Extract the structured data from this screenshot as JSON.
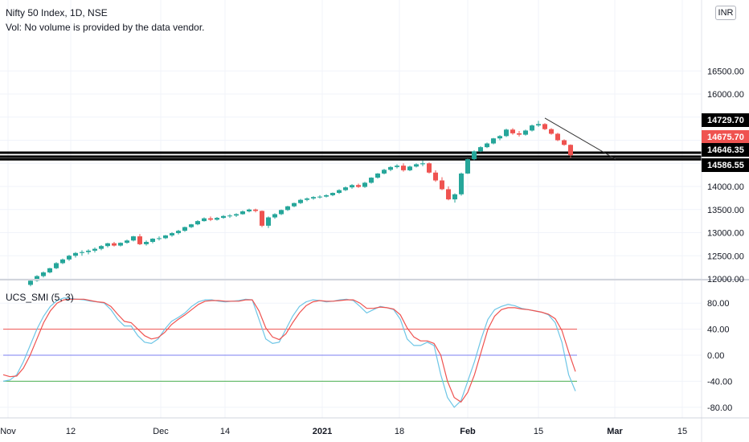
{
  "header": {
    "title": "Nifty 50 Index, 1D, NSE",
    "volume_note": "Vol: No volume is provided by the data vendor.",
    "currency": "INR"
  },
  "indicator": {
    "label": "UCS_SMI (5, 3)"
  },
  "colors": {
    "up": "#26a69a",
    "down": "#ef5350",
    "grid": "#f0f3fa",
    "smi_fast": "#6ec6e6",
    "smi_slow": "#ef5350",
    "level_high": "#ef5350",
    "level_zero": "#7b7ff0",
    "level_low": "#4caf50"
  },
  "chart_data": [
    {
      "type": "candlestick",
      "title": "Nifty 50 Index, 1D, NSE",
      "y_ticks": [
        "12000.00",
        "12500.00",
        "13000.00",
        "13500.00",
        "14000.00",
        "14500.00",
        "15000.00",
        "15500.00",
        "16000.00",
        "16500.00"
      ],
      "x_ticks": [
        "Nov",
        "12",
        "Dec",
        "14",
        "2021",
        "18",
        "Feb",
        "15",
        "Mar",
        "15"
      ],
      "ylim": [
        12000,
        16500
      ],
      "candles": [
        [
          11870,
          11990,
          11840,
          11960
        ],
        [
          11960,
          12080,
          11940,
          12060
        ],
        [
          12060,
          12160,
          12030,
          12140
        ],
        [
          12140,
          12240,
          12120,
          12230
        ],
        [
          12230,
          12360,
          12210,
          12340
        ],
        [
          12340,
          12440,
          12320,
          12420
        ],
        [
          12420,
          12520,
          12390,
          12500
        ],
        [
          12500,
          12580,
          12460,
          12560
        ],
        [
          12560,
          12620,
          12500,
          12580
        ],
        [
          12580,
          12640,
          12530,
          12610
        ],
        [
          12610,
          12680,
          12570,
          12650
        ],
        [
          12650,
          12730,
          12620,
          12710
        ],
        [
          12710,
          12780,
          12680,
          12770
        ],
        [
          12770,
          12800,
          12700,
          12720
        ],
        [
          12720,
          12790,
          12700,
          12780
        ],
        [
          12780,
          12850,
          12760,
          12830
        ],
        [
          12830,
          12930,
          12810,
          12920
        ],
        [
          12920,
          12970,
          12730,
          12750
        ],
        [
          12750,
          12830,
          12720,
          12800
        ],
        [
          12800,
          12880,
          12770,
          12870
        ],
        [
          12870,
          12920,
          12830,
          12880
        ],
        [
          12880,
          12950,
          12860,
          12940
        ],
        [
          12940,
          13010,
          12910,
          12990
        ],
        [
          12990,
          13060,
          12960,
          13040
        ],
        [
          13040,
          13130,
          13020,
          13120
        ],
        [
          13120,
          13190,
          13100,
          13180
        ],
        [
          13180,
          13270,
          13160,
          13250
        ],
        [
          13250,
          13330,
          13240,
          13310
        ],
        [
          13310,
          13350,
          13250,
          13280
        ],
        [
          13280,
          13340,
          13260,
          13320
        ],
        [
          13320,
          13380,
          13300,
          13360
        ],
        [
          13360,
          13400,
          13320,
          13370
        ],
        [
          13370,
          13420,
          13340,
          13400
        ],
        [
          13400,
          13480,
          13390,
          13460
        ],
        [
          13460,
          13520,
          13440,
          13500
        ],
        [
          13500,
          13520,
          13440,
          13470
        ],
        [
          13470,
          13480,
          13120,
          13150
        ],
        [
          13150,
          13350,
          13100,
          13330
        ],
        [
          13330,
          13420,
          13300,
          13400
        ],
        [
          13400,
          13500,
          13380,
          13490
        ],
        [
          13490,
          13580,
          13470,
          13570
        ],
        [
          13570,
          13650,
          13550,
          13640
        ],
        [
          13640,
          13730,
          13620,
          13710
        ],
        [
          13710,
          13760,
          13680,
          13740
        ],
        [
          13740,
          13790,
          13710,
          13770
        ],
        [
          13770,
          13810,
          13740,
          13780
        ],
        [
          13780,
          13830,
          13760,
          13810
        ],
        [
          13810,
          13870,
          13790,
          13860
        ],
        [
          13860,
          13940,
          13840,
          13920
        ],
        [
          13920,
          14000,
          13900,
          13980
        ],
        [
          13980,
          14050,
          13950,
          14030
        ],
        [
          14030,
          14060,
          13970,
          13990
        ],
        [
          13990,
          14100,
          13970,
          14080
        ],
        [
          14080,
          14200,
          14060,
          14190
        ],
        [
          14190,
          14290,
          14170,
          14280
        ],
        [
          14280,
          14380,
          14260,
          14360
        ],
        [
          14360,
          14440,
          14330,
          14420
        ],
        [
          14420,
          14480,
          14390,
          14450
        ],
        [
          14450,
          14500,
          14320,
          14350
        ],
        [
          14350,
          14450,
          14330,
          14430
        ],
        [
          14430,
          14500,
          14410,
          14480
        ],
        [
          14480,
          14560,
          14440,
          14500
        ],
        [
          14500,
          14520,
          14280,
          14300
        ],
        [
          14300,
          14350,
          14100,
          14130
        ],
        [
          14130,
          14200,
          13920,
          13940
        ],
        [
          13940,
          14000,
          13700,
          13720
        ],
        [
          13720,
          13850,
          13650,
          13830
        ],
        [
          13830,
          14300,
          13800,
          14280
        ],
        [
          14280,
          14600,
          14270,
          14590
        ],
        [
          14590,
          14780,
          14570,
          14760
        ],
        [
          14760,
          14870,
          14740,
          14850
        ],
        [
          14850,
          14950,
          14830,
          14930
        ],
        [
          14930,
          15050,
          14910,
          15040
        ],
        [
          15040,
          15110,
          15000,
          15090
        ],
        [
          15090,
          15250,
          15070,
          15230
        ],
        [
          15230,
          15260,
          15120,
          15150
        ],
        [
          15150,
          15200,
          15080,
          15120
        ],
        [
          15120,
          15230,
          15100,
          15210
        ],
        [
          15210,
          15340,
          15190,
          15320
        ],
        [
          15320,
          15420,
          15290,
          15350
        ],
        [
          15350,
          15370,
          15220,
          15240
        ],
        [
          15240,
          15260,
          15120,
          15140
        ],
        [
          15140,
          15160,
          14980,
          15000
        ],
        [
          15000,
          15020,
          14880,
          14900
        ],
        [
          14900,
          14910,
          14620,
          14675.7
        ]
      ],
      "support_levels": [
        14729.7,
        14646.35,
        14586.55
      ],
      "price_labels": [
        "14729.70",
        "14675.70",
        "14646.35",
        "14586.55"
      ],
      "trendline": [
        [
          15480,
          14590
        ]
      ],
      "grid": true
    },
    {
      "type": "line",
      "title": "UCS_SMI (5, 3)",
      "y_ticks": [
        "80.00",
        "40.00",
        "0.00",
        "-40.00",
        "-80.00"
      ],
      "ylim": [
        -95,
        100
      ],
      "levels": [
        40,
        0,
        -40
      ],
      "series": [
        {
          "values": [
            -40,
            -38,
            -30,
            -10,
            15,
            40,
            60,
            75,
            84,
            88,
            87,
            86,
            85,
            83,
            82,
            80,
            70,
            55,
            45,
            45,
            30,
            20,
            18,
            25,
            40,
            52,
            58,
            65,
            75,
            82,
            85,
            85,
            83,
            82,
            83,
            84,
            86,
            85,
            55,
            25,
            18,
            20,
            40,
            60,
            75,
            82,
            85,
            84,
            82,
            83,
            85,
            86,
            84,
            75,
            65,
            70,
            75,
            73,
            70,
            55,
            25,
            15,
            15,
            20,
            15,
            -30,
            -65,
            -80,
            -70,
            -40,
            -10,
            25,
            55,
            70,
            75,
            78,
            76,
            72,
            70,
            68,
            66,
            62,
            50,
            20,
            -30,
            -55
          ]
        },
        {
          "values": [
            -30,
            -33,
            -32,
            -20,
            0,
            25,
            50,
            68,
            80,
            85,
            86,
            86,
            86,
            84,
            82,
            81,
            75,
            63,
            52,
            50,
            40,
            30,
            25,
            27,
            35,
            47,
            55,
            62,
            70,
            78,
            83,
            84,
            84,
            83,
            83,
            83,
            85,
            85,
            68,
            42,
            28,
            24,
            33,
            50,
            65,
            76,
            82,
            84,
            83,
            83,
            84,
            85,
            85,
            80,
            72,
            72,
            74,
            73,
            71,
            62,
            42,
            28,
            22,
            22,
            18,
            0,
            -40,
            -65,
            -72,
            -57,
            -30,
            5,
            40,
            60,
            70,
            73,
            73,
            71,
            70,
            68,
            66,
            63,
            56,
            38,
            5,
            -25
          ]
        }
      ],
      "grid": true
    }
  ]
}
